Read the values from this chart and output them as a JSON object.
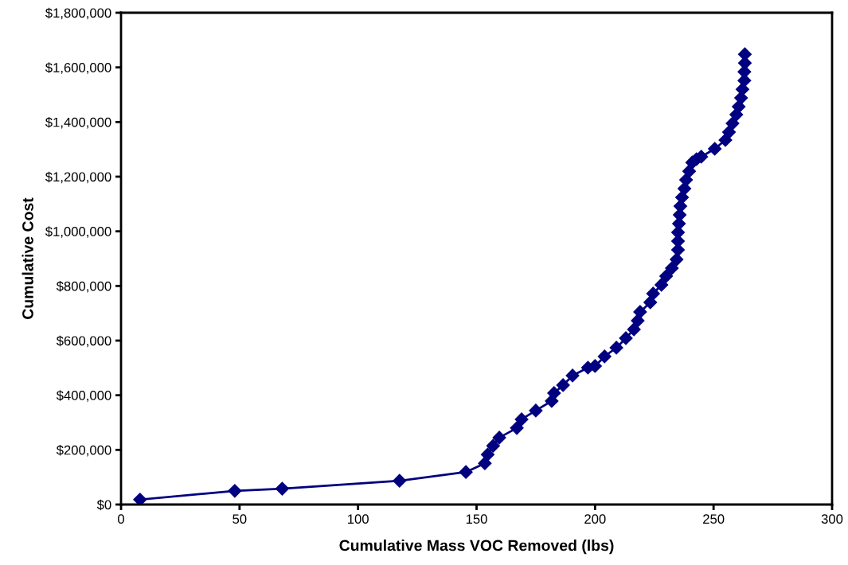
{
  "chart_data": {
    "type": "line",
    "xlabel": "Cumulative Mass VOC Removed (lbs)",
    "ylabel": "Cumulative Cost",
    "xlim": [
      0,
      300
    ],
    "xticks": [
      0,
      50,
      100,
      150,
      200,
      250,
      300
    ],
    "ylim": [
      0,
      1800000
    ],
    "yticks": [
      {
        "value": 0,
        "label": "$0"
      },
      {
        "value": 200000,
        "label": "$200,000"
      },
      {
        "value": 400000,
        "label": "$400,000"
      },
      {
        "value": 600000,
        "label": "$600,000"
      },
      {
        "value": 800000,
        "label": "$800,000"
      },
      {
        "value": 1000000,
        "label": "$1,000,000"
      },
      {
        "value": 1200000,
        "label": "$1,200,000"
      },
      {
        "value": 1400000,
        "label": "$1,400,000"
      },
      {
        "value": 1600000,
        "label": "$1,600,000"
      },
      {
        "value": 1800000,
        "label": "$1,800,000"
      }
    ],
    "grid": false,
    "marker": "diamond",
    "line_style": "solid",
    "series": [
      {
        "color": "#000080",
        "x": [
          8,
          48,
          68,
          117.5,
          145.5,
          153.5,
          154.7,
          157,
          159.6,
          167,
          169,
          175,
          181.7,
          182.7,
          186.5,
          190.5,
          197,
          200,
          204,
          209,
          213,
          216.4,
          218,
          219,
          223.3,
          224.5,
          228,
          230,
          232.4,
          234.4,
          235,
          235,
          235,
          235.4,
          235.7,
          236,
          236.7,
          237.7,
          238.4,
          239.7,
          241,
          242.8,
          244.8,
          250.5,
          255,
          256.5,
          258,
          259.6,
          260.6,
          261.6,
          262.2,
          263,
          263,
          263.2,
          263.2
        ],
        "values": [
          18000,
          50000,
          58000,
          87000,
          119000,
          151000,
          183000,
          215000,
          245000,
          280000,
          312000,
          344000,
          379000,
          408000,
          437000,
          472000,
          501000,
          507000,
          542000,
          574000,
          609000,
          641000,
          673000,
          705000,
          740000,
          772000,
          804000,
          836000,
          865000,
          897000,
          932000,
          964000,
          996000,
          1028000,
          1060000,
          1092000,
          1124000,
          1156000,
          1188000,
          1220000,
          1252000,
          1264000,
          1273000,
          1302000,
          1334000,
          1363000,
          1395000,
          1427000,
          1456000,
          1488000,
          1520000,
          1552000,
          1584000,
          1616000,
          1648000
        ]
      }
    ]
  }
}
